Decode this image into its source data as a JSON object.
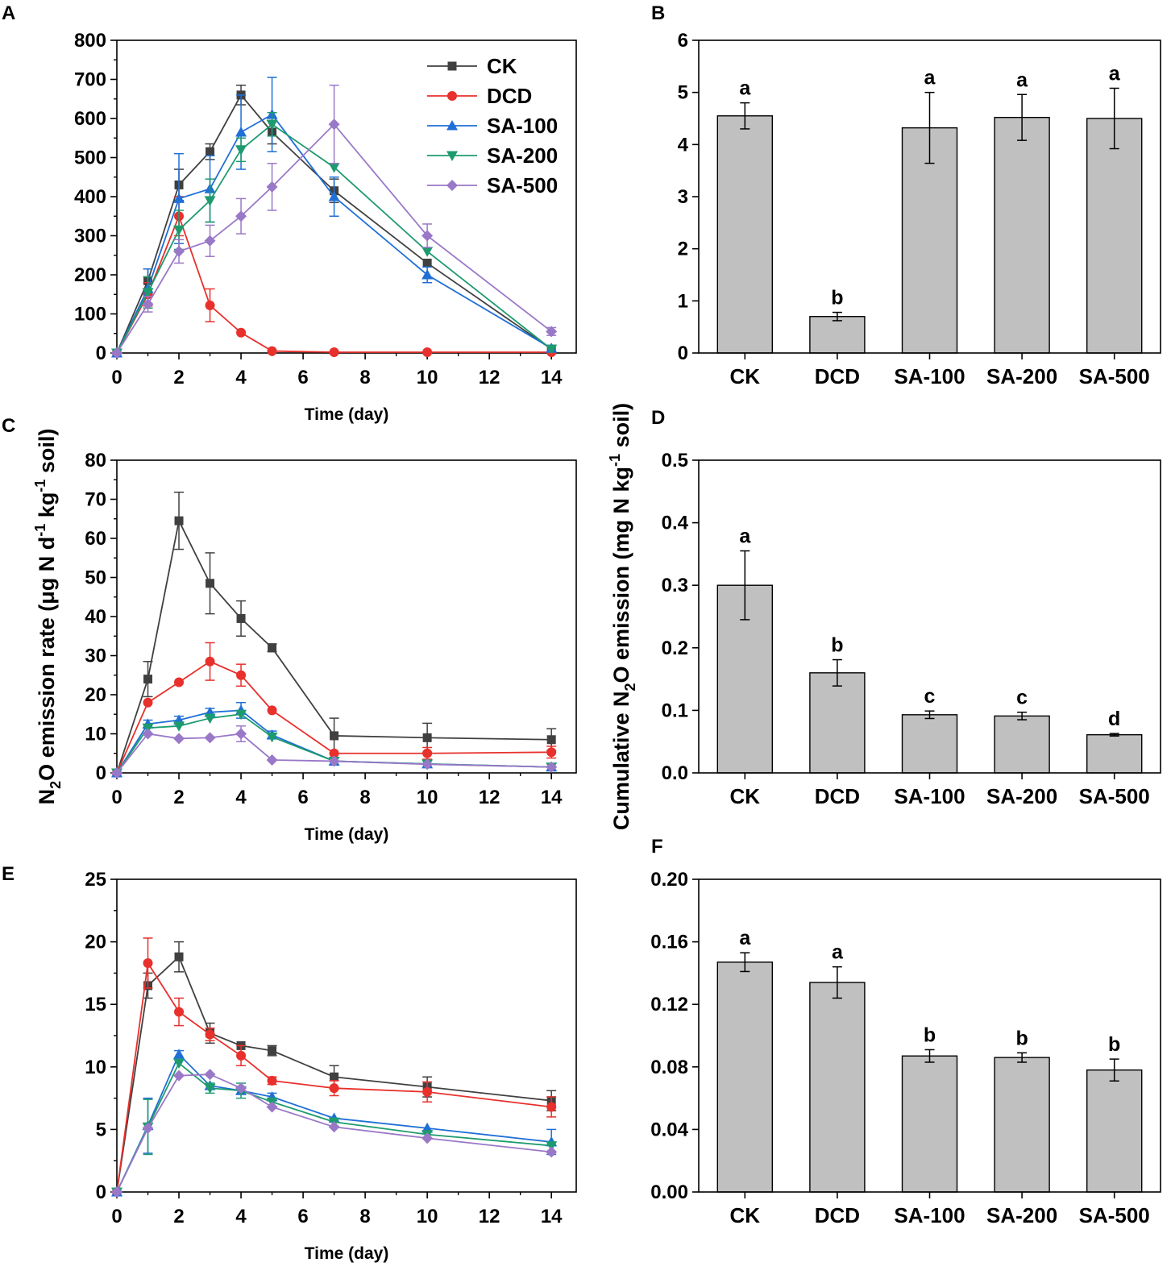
{
  "panel_labels": [
    "A",
    "B",
    "C",
    "D",
    "E",
    "F"
  ],
  "shared_ylabel_left": "N2O emission rate (μg N d-1 kg-1 soil)",
  "shared_ylabel_right": "Cumulative N2O emission (mg N kg-1 soil)",
  "series_styles": [
    {
      "name": "CK",
      "color": "#404040",
      "marker": "square"
    },
    {
      "name": "DCD",
      "color": "#e8302c",
      "marker": "circle"
    },
    {
      "name": "SA-100",
      "color": "#1f6fd6",
      "marker": "triangle-up"
    },
    {
      "name": "SA-200",
      "color": "#1e9b6e",
      "marker": "triangle-down"
    },
    {
      "name": "SA-500",
      "color": "#9a78c8",
      "marker": "diamond"
    }
  ],
  "bar_color": "#c0c0c0",
  "chart_data": [
    {
      "panel": "A",
      "type": "line",
      "title": "",
      "xlabel": "Time (day)",
      "ylabel": "",
      "xlim": [
        0,
        14.8
      ],
      "ylim": [
        0,
        800
      ],
      "xticks": [
        0,
        2,
        4,
        6,
        8,
        10,
        12,
        14
      ],
      "yticks": [
        0,
        100,
        200,
        300,
        400,
        500,
        600,
        700,
        800
      ],
      "x": [
        0,
        1,
        2,
        3,
        4,
        5,
        7,
        10,
        14
      ],
      "legend": "top-right",
      "series": [
        {
          "name": "CK",
          "values": [
            0,
            185,
            430,
            515,
            660,
            565,
            415,
            230,
            10
          ],
          "errors": [
            0,
            30,
            40,
            20,
            25,
            30,
            30,
            0,
            0
          ]
        },
        {
          "name": "DCD",
          "values": [
            0,
            150,
            350,
            122,
            52,
            5,
            2,
            2,
            2
          ],
          "errors": [
            0,
            30,
            50,
            42,
            0,
            0,
            0,
            0,
            0
          ]
        },
        {
          "name": "SA-100",
          "values": [
            0,
            165,
            395,
            420,
            565,
            610,
            400,
            200,
            12
          ],
          "errors": [
            0,
            50,
            115,
            85,
            95,
            95,
            50,
            20,
            0
          ]
        },
        {
          "name": "SA-200",
          "values": [
            0,
            155,
            315,
            390,
            520,
            585,
            475,
            260,
            10
          ],
          "errors": [
            0,
            40,
            50,
            55,
            30,
            30,
            0,
            0,
            0
          ]
        },
        {
          "name": "SA-500",
          "values": [
            0,
            125,
            260,
            287,
            350,
            425,
            585,
            300,
            55
          ],
          "errors": [
            0,
            20,
            30,
            40,
            45,
            60,
            100,
            30,
            10
          ]
        }
      ]
    },
    {
      "panel": "B",
      "type": "bar",
      "title": "",
      "xlabel": "",
      "ylabel": "",
      "categories": [
        "CK",
        "DCD",
        "SA-100",
        "SA-200",
        "SA-500"
      ],
      "values": [
        4.55,
        0.7,
        4.32,
        4.52,
        4.5
      ],
      "errors": [
        0.25,
        0.08,
        0.68,
        0.44,
        0.58
      ],
      "letters": [
        "a",
        "b",
        "a",
        "a",
        "a"
      ],
      "ylim": [
        0,
        6
      ],
      "yticks": [
        0,
        1,
        2,
        3,
        4,
        5,
        6
      ],
      "ytick_labels": [
        "0",
        "1",
        "2",
        "3",
        "4",
        "5",
        "6"
      ]
    },
    {
      "panel": "C",
      "type": "line",
      "title": "",
      "xlabel": "Time (day)",
      "ylabel": "",
      "xlim": [
        0,
        14.8
      ],
      "ylim": [
        0,
        80
      ],
      "xticks": [
        0,
        2,
        4,
        6,
        8,
        10,
        12,
        14
      ],
      "yticks": [
        0,
        10,
        20,
        30,
        40,
        50,
        60,
        70,
        80
      ],
      "x": [
        0,
        1,
        2,
        3,
        4,
        5,
        7,
        10,
        14
      ],
      "series": [
        {
          "name": "CK",
          "values": [
            0,
            24,
            64.5,
            48.5,
            39.5,
            32,
            9.5,
            9,
            8.5
          ],
          "errors": [
            0,
            4.5,
            7.3,
            7.8,
            4.5,
            1,
            4.5,
            3.7,
            2.8
          ]
        },
        {
          "name": "DCD",
          "values": [
            0,
            18,
            23.2,
            28.5,
            25,
            16,
            5,
            5,
            5.3
          ],
          "errors": [
            0,
            0,
            0,
            4.8,
            2.8,
            0,
            0,
            1.5,
            1.5
          ]
        },
        {
          "name": "SA-100",
          "values": [
            0,
            12.5,
            13.5,
            15.5,
            16,
            9.7,
            3,
            2.3,
            1.5
          ],
          "errors": [
            0,
            1,
            1,
            1,
            2,
            1,
            0,
            0,
            0
          ]
        },
        {
          "name": "SA-200",
          "values": [
            0,
            11.5,
            12,
            14,
            15,
            9.2,
            3,
            2.3,
            1.5
          ],
          "errors": [
            0,
            0,
            0,
            0,
            0,
            0,
            0,
            0,
            0
          ]
        },
        {
          "name": "SA-500",
          "values": [
            0,
            10,
            8.8,
            9,
            10,
            3.3,
            3,
            2.2,
            1.5
          ],
          "errors": [
            0,
            0,
            0,
            0,
            2,
            0,
            0,
            0,
            0
          ]
        }
      ]
    },
    {
      "panel": "D",
      "type": "bar",
      "title": "",
      "xlabel": "",
      "ylabel": "",
      "categories": [
        "CK",
        "DCD",
        "SA-100",
        "SA-200",
        "SA-500"
      ],
      "values": [
        0.3,
        0.16,
        0.093,
        0.091,
        0.061
      ],
      "errors": [
        0.055,
        0.021,
        0.006,
        0.006,
        0.002
      ],
      "letters": [
        "a",
        "b",
        "c",
        "c",
        "d"
      ],
      "ylim": [
        0,
        0.5
      ],
      "yticks": [
        0,
        0.1,
        0.2,
        0.3,
        0.4,
        0.5
      ],
      "ytick_labels": [
        "0.0",
        "0.1",
        "0.2",
        "0.3",
        "0.4",
        "0.5"
      ]
    },
    {
      "panel": "E",
      "type": "line",
      "title": "",
      "xlabel": "Time (day)",
      "ylabel": "",
      "xlim": [
        0,
        14.8
      ],
      "ylim": [
        0,
        25
      ],
      "xticks": [
        0,
        2,
        4,
        6,
        8,
        10,
        12,
        14
      ],
      "yticks": [
        0,
        5,
        10,
        15,
        20,
        25
      ],
      "x": [
        0,
        1,
        2,
        3,
        4,
        5,
        7,
        10,
        14
      ],
      "series": [
        {
          "name": "CK",
          "values": [
            0,
            16.5,
            18.8,
            12.7,
            11.7,
            11.3,
            9.2,
            8.4,
            7.3
          ],
          "errors": [
            0,
            1,
            1.2,
            0.8,
            0,
            0.4,
            0.9,
            0.8,
            0.8
          ]
        },
        {
          "name": "DCD",
          "values": [
            0,
            18.3,
            14.4,
            12.6,
            10.9,
            8.9,
            8.3,
            8,
            6.8
          ],
          "errors": [
            0,
            2,
            1.1,
            0.5,
            0.8,
            0.3,
            0.6,
            0.8,
            0.8
          ]
        },
        {
          "name": "SA-100",
          "values": [
            0,
            5.3,
            11,
            8.5,
            8.1,
            7.6,
            5.9,
            5.1,
            4
          ],
          "errors": [
            0,
            2.2,
            0.3,
            0,
            0,
            0.3,
            0,
            0,
            1
          ]
        },
        {
          "name": "SA-200",
          "values": [
            0,
            5.2,
            10.3,
            8.3,
            8.1,
            7.2,
            5.6,
            4.6,
            3.7
          ],
          "errors": [
            0,
            2.2,
            0,
            0.4,
            0.6,
            0,
            0,
            0,
            0
          ]
        },
        {
          "name": "SA-500",
          "values": [
            0,
            5.1,
            9.3,
            9.4,
            8.3,
            6.8,
            5.2,
            4.3,
            3.2
          ],
          "errors": [
            0,
            0,
            0,
            0,
            0,
            0,
            0,
            0,
            0
          ]
        }
      ]
    },
    {
      "panel": "F",
      "type": "bar",
      "title": "",
      "xlabel": "",
      "ylabel": "",
      "categories": [
        "CK",
        "DCD",
        "SA-100",
        "SA-200",
        "SA-500"
      ],
      "values": [
        0.147,
        0.134,
        0.087,
        0.086,
        0.078
      ],
      "errors": [
        0.006,
        0.01,
        0.004,
        0.003,
        0.007
      ],
      "letters": [
        "a",
        "a",
        "b",
        "b",
        "b"
      ],
      "ylim": [
        0,
        0.2
      ],
      "yticks": [
        0,
        0.04,
        0.08,
        0.12,
        0.16,
        0.2
      ],
      "ytick_labels": [
        "0.00",
        "0.04",
        "0.08",
        "0.12",
        "0.16",
        "0.20"
      ]
    }
  ]
}
